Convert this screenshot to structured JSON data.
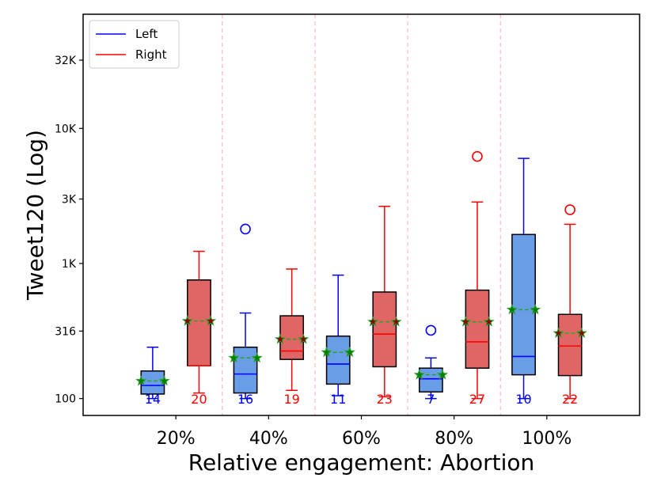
{
  "chart_data": {
    "type": "box",
    "title": "",
    "xlabel": "Relative engagement: Abortion",
    "ylabel": "Tweet120 (Log)",
    "yscale": "log",
    "ylim": [
      75,
      70000
    ],
    "yticks": [
      100,
      316,
      1000,
      3000,
      10000,
      32000
    ],
    "ytick_labels": [
      "100",
      "316",
      "1K",
      "3K",
      "10K",
      "32K"
    ],
    "categories": [
      "20%",
      "40%",
      "60%",
      "80%",
      "100%"
    ],
    "legend": {
      "position": "top-left",
      "entries": [
        "Left",
        "Right"
      ]
    },
    "colors": {
      "left_line": "#0000ff",
      "left_fill": "#6a9de8",
      "right_line": "#ff0000",
      "right_fill": "#e06666",
      "mean_line": "#2ca02c",
      "mean_marker_fill": "#008000",
      "mean_marker_fill_right": "#8b0000",
      "separator": "#ffb6c1"
    },
    "series": [
      {
        "name": "Left",
        "boxes": [
          {
            "whislo": 100,
            "q1": 108,
            "med": 125,
            "q3": 160,
            "whishi": 240,
            "mean": 135,
            "fliers": [],
            "count": "14"
          },
          {
            "whislo": 100,
            "q1": 110,
            "med": 152,
            "q3": 240,
            "whishi": 430,
            "mean": 200,
            "fliers": [
              1800
            ],
            "count": "16"
          },
          {
            "whislo": 105,
            "q1": 128,
            "med": 180,
            "q3": 290,
            "whishi": 820,
            "mean": 220,
            "fliers": [],
            "count": "11"
          },
          {
            "whislo": 100,
            "q1": 112,
            "med": 140,
            "q3": 168,
            "whishi": 200,
            "mean": 150,
            "fliers": [
              320
            ],
            "count": "7"
          },
          {
            "whislo": 100,
            "q1": 150,
            "med": 205,
            "q3": 1640,
            "whishi": 6000,
            "mean": 455,
            "fliers": [],
            "count": "10"
          }
        ]
      },
      {
        "name": "Right",
        "boxes": [
          {
            "whislo": 110,
            "q1": 175,
            "med": 175,
            "q3": 755,
            "whishi": 1230,
            "mean": 375,
            "fliers": [],
            "count": "20"
          },
          {
            "whislo": 115,
            "q1": 195,
            "med": 225,
            "q3": 410,
            "whishi": 910,
            "mean": 275,
            "fliers": [],
            "count": "19"
          },
          {
            "whislo": 103,
            "q1": 172,
            "med": 300,
            "q3": 615,
            "whishi": 2650,
            "mean": 370,
            "fliers": [],
            "count": "23"
          },
          {
            "whislo": 100,
            "q1": 168,
            "med": 263,
            "q3": 635,
            "whishi": 2850,
            "mean": 370,
            "fliers": [
              6200
            ],
            "count": "27"
          },
          {
            "whislo": 100,
            "q1": 148,
            "med": 245,
            "q3": 420,
            "whishi": 1950,
            "mean": 305,
            "fliers": [
              2500
            ],
            "count": "22"
          }
        ]
      }
    ]
  }
}
